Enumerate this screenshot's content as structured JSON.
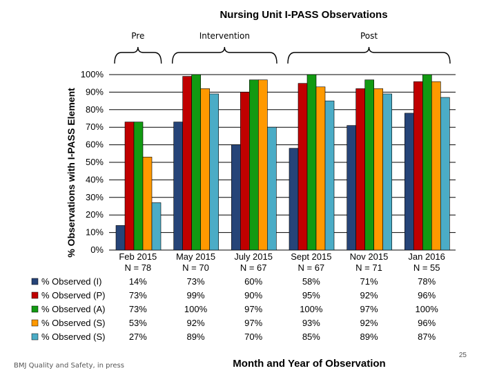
{
  "chart_data": {
    "type": "bar",
    "title": "Nursing Unit I-PASS Observations",
    "xlabel": "Month and Year of Observation",
    "ylabel": "% Observations with I-PASS Element",
    "ylim": [
      0,
      100
    ],
    "yticks": [
      "0%",
      "10%",
      "20%",
      "30%",
      "40%",
      "50%",
      "60%",
      "70%",
      "80%",
      "90%",
      "100%"
    ],
    "grid": true,
    "categories": [
      {
        "line1": "Feb 2015",
        "line2": "N = 78"
      },
      {
        "line1": "May 2015",
        "line2": "N = 70"
      },
      {
        "line1": "July 2015",
        "line2": "N = 67"
      },
      {
        "line1": "Sept 2015",
        "line2": "N = 67"
      },
      {
        "line1": "Nov 2015",
        "line2": "N = 71"
      },
      {
        "line1": "Jan 2016",
        "line2": "N = 55"
      }
    ],
    "series": [
      {
        "name": "% Observed (I)",
        "color": "#264478",
        "values": [
          14,
          73,
          60,
          58,
          71,
          78
        ],
        "labels": [
          "14%",
          "73%",
          "60%",
          "58%",
          "71%",
          "78%"
        ]
      },
      {
        "name": "% Observed (P)",
        "color": "#C00000",
        "values": [
          73,
          99,
          90,
          95,
          92,
          96
        ],
        "labels": [
          "73%",
          "99%",
          "90%",
          "95%",
          "92%",
          "96%"
        ]
      },
      {
        "name": "% Observed (A)",
        "color": "#129A12",
        "values": [
          73,
          100,
          97,
          100,
          97,
          100
        ],
        "labels": [
          "73%",
          "100%",
          "97%",
          "100%",
          "97%",
          "100%"
        ]
      },
      {
        "name": "% Observed (S)",
        "color": "#FF9900",
        "values": [
          53,
          92,
          97,
          93,
          92,
          96
        ],
        "labels": [
          "53%",
          "92%",
          "97%",
          "93%",
          "92%",
          "96%"
        ]
      },
      {
        "name": "% Observed (S)",
        "color": "#4BACC6",
        "values": [
          27,
          89,
          70,
          85,
          89,
          87
        ],
        "labels": [
          "27%",
          "89%",
          "70%",
          "85%",
          "89%",
          "87%"
        ]
      }
    ],
    "phases": [
      {
        "label": "Pre",
        "from": 0,
        "to": 0
      },
      {
        "label": "Intervention",
        "from": 1,
        "to": 2
      },
      {
        "label": "Post",
        "from": 3,
        "to": 5
      }
    ]
  },
  "footer": "BMJ Quality and Safety, in press",
  "page_number": "25"
}
